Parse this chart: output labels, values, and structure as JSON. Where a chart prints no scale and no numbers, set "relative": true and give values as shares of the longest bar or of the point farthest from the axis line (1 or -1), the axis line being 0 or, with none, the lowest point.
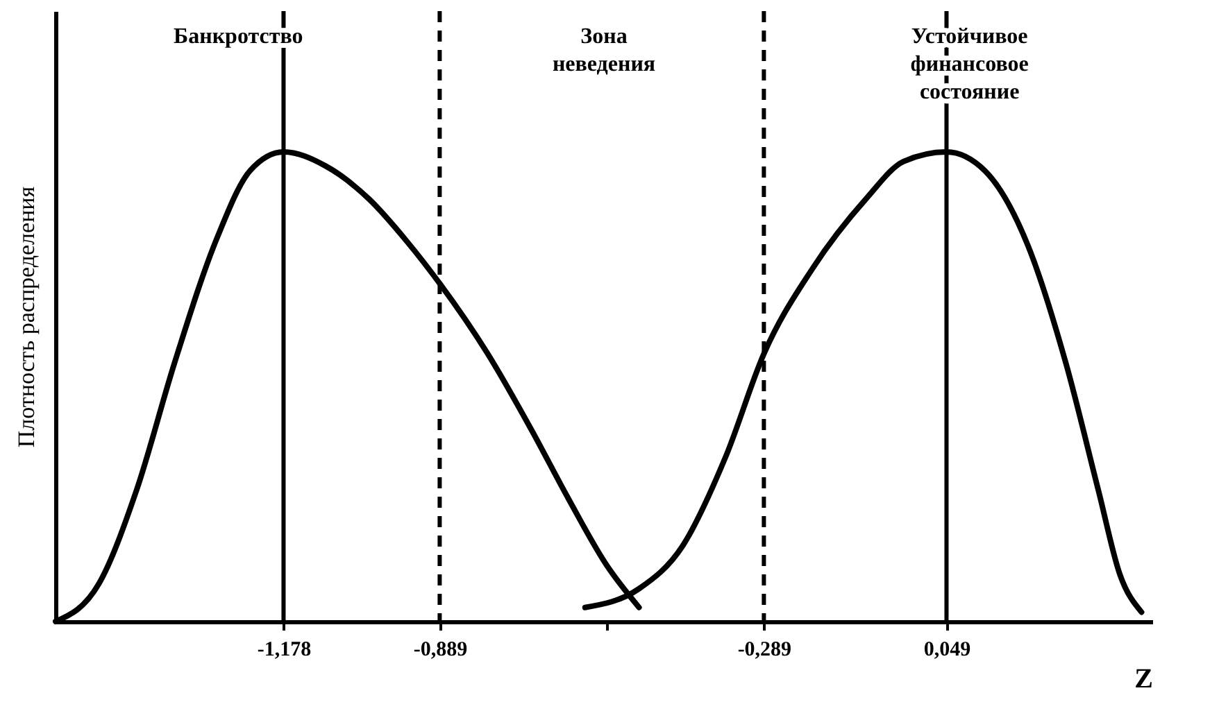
{
  "chart_data": {
    "type": "line",
    "relative": true,
    "xlabel": "Z",
    "ylabel": "Плотность распределения",
    "xlim": [
      -1.6,
      0.43
    ],
    "xticks": [
      {
        "value": -1.178,
        "label": "-1,178"
      },
      {
        "value": -0.889,
        "label": "-0,889"
      },
      {
        "value": -0.58,
        "label": null
      },
      {
        "value": -0.289,
        "label": "-0,289"
      },
      {
        "value": 0.049,
        "label": "0,049"
      }
    ],
    "tick_labels": "x",
    "grid": false,
    "legend": false,
    "marker": "none",
    "line_style": "solid",
    "series": [
      {
        "color": "#000000",
        "x": [
          -1.6,
          -1.52,
          -1.45,
          -1.38,
          -1.3,
          -1.24,
          -1.178,
          -1.1,
          -1.02,
          -0.95,
          -0.889,
          -0.8,
          -0.72,
          -0.65,
          -0.58,
          -0.52
        ],
        "values": [
          0,
          0.08,
          0.28,
          0.55,
          0.82,
          0.96,
          1,
          0.97,
          0.9,
          0.81,
          0.72,
          0.57,
          0.41,
          0.26,
          0.12,
          0.03
        ]
      },
      {
        "color": "#000000",
        "x": [
          -0.62,
          -0.52,
          -0.44,
          -0.36,
          -0.289,
          -0.2,
          -0.1,
          -0.03,
          0.049,
          0.12,
          0.2,
          0.27,
          0.33,
          0.37,
          0.41
        ],
        "values": [
          0.03,
          0.07,
          0.16,
          0.35,
          0.57,
          0.75,
          0.9,
          0.98,
          1,
          0.96,
          0.8,
          0.55,
          0.28,
          0.1,
          0.02
        ]
      }
    ],
    "ref_lines": [
      {
        "axis": "x",
        "value": -1.178,
        "line_style": "solid"
      },
      {
        "axis": "x",
        "value": -0.889,
        "line_style": "dashed"
      },
      {
        "axis": "x",
        "value": -0.289,
        "line_style": "dashed"
      },
      {
        "axis": "x",
        "value": 0.049,
        "line_style": "solid"
      }
    ],
    "annotations": [
      "Банкротство",
      "Зона\nневедения",
      "Устойчивое\nфинансовое\nсостояние"
    ]
  }
}
